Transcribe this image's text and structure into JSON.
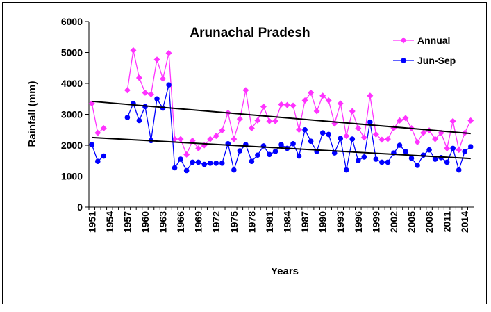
{
  "chart_data": {
    "type": "line",
    "title": "Arunachal Pradesh",
    "xlabel": "Years",
    "ylabel": "Rainfall (mm)",
    "categories": [
      "1951",
      null,
      null,
      "1954",
      null,
      null,
      "1957",
      null,
      null,
      "1960",
      null,
      null,
      "1963",
      null,
      null,
      "1966",
      null,
      null,
      "1969",
      null,
      null,
      "1972",
      null,
      null,
      "1975",
      null,
      null,
      "1978",
      null,
      null,
      "1981",
      null,
      null,
      "1984",
      null,
      null,
      "1987",
      null,
      null,
      "1990",
      null,
      null,
      "1993",
      null,
      null,
      "1996",
      null,
      null,
      "1999",
      null,
      null,
      "2002",
      null,
      null,
      "2005",
      null,
      null,
      "2008",
      null,
      null,
      "2011",
      null,
      null,
      "2014",
      null
    ],
    "series": [
      {
        "name": "Annual",
        "color": "#ff33ff",
        "marker": "diamond",
        "trend": [
          3420,
          2380
        ],
        "values": [
          3350,
          2400,
          2550,
          null,
          null,
          null,
          3780,
          5070,
          4180,
          3700,
          3650,
          4770,
          4150,
          4980,
          2200,
          2200,
          1700,
          2150,
          1900,
          2000,
          2200,
          2300,
          2480,
          3050,
          2200,
          2850,
          3780,
          2550,
          2800,
          3250,
          2780,
          2780,
          3320,
          3300,
          3280,
          2500,
          3450,
          3700,
          3100,
          3600,
          3450,
          2700,
          3350,
          2300,
          3100,
          2550,
          2250,
          3600,
          2350,
          2180,
          2200,
          2550,
          2800,
          2880,
          2550,
          2100,
          2400,
          2480,
          2200,
          2400,
          1900,
          2780,
          1850,
          2400,
          2800
        ]
      },
      {
        "name": "Jun-Sep",
        "color": "#0000ff",
        "marker": "circle",
        "trend": [
          2250,
          1570
        ],
        "values": [
          2020,
          1480,
          1650,
          null,
          null,
          null,
          2900,
          3350,
          2800,
          3250,
          2150,
          3500,
          3200,
          3950,
          1270,
          1550,
          1180,
          1450,
          1450,
          1380,
          1420,
          1420,
          1420,
          2050,
          1200,
          1820,
          2020,
          1480,
          1680,
          1980,
          1700,
          1800,
          2020,
          1900,
          2050,
          1650,
          2500,
          2130,
          1800,
          2400,
          2350,
          1750,
          2220,
          1200,
          2200,
          1500,
          1620,
          2750,
          1550,
          1450,
          1450,
          1750,
          2000,
          1800,
          1580,
          1350,
          1680,
          1850,
          1550,
          1600,
          1450,
          1900,
          1200,
          1800,
          1950
        ]
      }
    ],
    "ylim": [
      0,
      6000
    ],
    "yticks": [
      0,
      1000,
      2000,
      3000,
      4000,
      5000,
      6000
    ],
    "grid": false,
    "legend": "upper right"
  }
}
